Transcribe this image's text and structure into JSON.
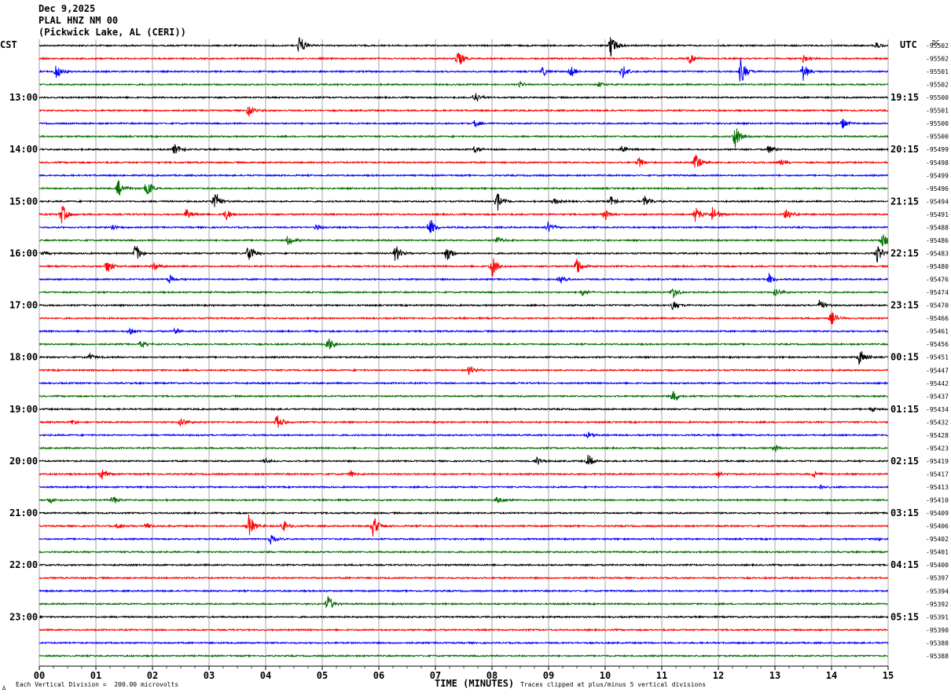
{
  "header": {
    "date": "Dec 9,2025",
    "station": "PLAL HNZ NM 00",
    "location": "(Pickwick Lake, AL (CERI))"
  },
  "left_tz": "CST",
  "right_tz": "UTC",
  "dc_label": "DC",
  "footer": {
    "scale": "Each Vertical Division =  200.00 microvolts",
    "clip": "Traces clipped at plus/minus 5 vertical divisions",
    "logo": "∆"
  },
  "colors": {
    "cycle": [
      "#000000",
      "#ff0000",
      "#0000ff",
      "#007000"
    ],
    "grid": "#808080"
  },
  "chart_data": {
    "type": "line",
    "title": "PLAL HNZ NM 00",
    "xlabel": "TIME (MINUTES)",
    "ylabel": "",
    "xlim": [
      0,
      15
    ],
    "x_ticks": [
      "00",
      "01",
      "02",
      "03",
      "04",
      "05",
      "06",
      "07",
      "08",
      "09",
      "10",
      "11",
      "12",
      "13",
      "14",
      "15"
    ],
    "left_hour_labels": [
      "13:00",
      "14:00",
      "15:00",
      "16:00",
      "17:00",
      "18:00",
      "19:00",
      "20:00",
      "21:00",
      "22:00",
      "23:00"
    ],
    "right_hour_labels": [
      "19:15",
      "20:15",
      "21:15",
      "22:15",
      "23:15",
      "00:15",
      "01:15",
      "02:15",
      "03:15",
      "04:15",
      "05:15"
    ],
    "dc_offsets": [
      "-95502",
      "-95502",
      "-95501",
      "-95502",
      "-95500",
      "-95501",
      "-95500",
      "-95500",
      "-95499",
      "-95498",
      "-95499",
      "-95496",
      "-95494",
      "-95491",
      "-95488",
      "-95486",
      "-95483",
      "-95480",
      "-95476",
      "-95474",
      "-95470",
      "-95466",
      "-95461",
      "-95456",
      "-95451",
      "-95447",
      "-95442",
      "-95437",
      "-95434",
      "-95432",
      "-95428",
      "-95423",
      "-95419",
      "-95417",
      "-95413",
      "-95410",
      "-95409",
      "-95406",
      "-95402",
      "-95401",
      "-95400",
      "-95397",
      "-95394",
      "-95392",
      "-95391",
      "-95390",
      "-95388",
      "-95388"
    ],
    "events": [
      [
        [
          4.6,
          1.1
        ],
        [
          10.1,
          1.3
        ],
        [
          14.8,
          0.4
        ]
      ],
      [
        [
          7.4,
          1.0
        ],
        [
          11.5,
          0.6
        ],
        [
          13.5,
          0.6
        ]
      ],
      [
        [
          0.3,
          0.8
        ],
        [
          8.9,
          0.5
        ],
        [
          9.4,
          0.6
        ],
        [
          10.3,
          0.8
        ],
        [
          12.4,
          1.5
        ],
        [
          13.5,
          1.0
        ]
      ],
      [
        [
          8.5,
          0.3
        ],
        [
          9.9,
          0.3
        ]
      ],
      [
        [
          7.7,
          0.6
        ]
      ],
      [
        [
          3.7,
          0.6
        ]
      ],
      [
        [
          7.7,
          0.5
        ],
        [
          14.2,
          0.6
        ]
      ],
      [
        [
          12.3,
          1.3
        ]
      ],
      [
        [
          2.4,
          0.7
        ],
        [
          7.7,
          0.4
        ],
        [
          10.3,
          0.5
        ],
        [
          12.9,
          0.6
        ]
      ],
      [
        [
          10.6,
          0.6
        ],
        [
          11.6,
          1.0
        ],
        [
          13.1,
          0.5
        ]
      ],
      [],
      [
        [
          1.4,
          1.0
        ],
        [
          1.9,
          1.0
        ]
      ],
      [
        [
          3.1,
          1.2
        ],
        [
          8.1,
          1.0
        ],
        [
          9.1,
          0.4
        ],
        [
          10.1,
          0.6
        ],
        [
          10.7,
          0.7
        ]
      ],
      [
        [
          0.4,
          1.1
        ],
        [
          2.6,
          0.6
        ],
        [
          3.3,
          0.7
        ],
        [
          10.0,
          0.6
        ],
        [
          11.6,
          1.0
        ],
        [
          11.9,
          0.9
        ],
        [
          13.2,
          0.8
        ]
      ],
      [
        [
          1.3,
          0.4
        ],
        [
          4.9,
          0.4
        ],
        [
          6.9,
          1.1
        ],
        [
          9.0,
          0.7
        ]
      ],
      [
        [
          4.4,
          0.6
        ],
        [
          8.1,
          0.5
        ],
        [
          14.9,
          0.8
        ]
      ],
      [
        [
          0.1,
          0.3
        ],
        [
          1.7,
          1.1
        ],
        [
          3.7,
          1.1
        ],
        [
          6.3,
          1.0
        ],
        [
          7.2,
          0.9
        ],
        [
          14.8,
          1.1
        ]
      ],
      [
        [
          1.2,
          0.8
        ],
        [
          2.0,
          0.7
        ],
        [
          8.0,
          1.2
        ],
        [
          9.5,
          1.0
        ]
      ],
      [
        [
          2.3,
          0.5
        ],
        [
          9.2,
          0.5
        ],
        [
          12.9,
          0.6
        ]
      ],
      [
        [
          9.6,
          0.5
        ],
        [
          11.2,
          0.7
        ],
        [
          13.0,
          0.6
        ]
      ],
      [
        [
          13.8,
          0.7
        ],
        [
          11.2,
          0.6
        ]
      ],
      [
        [
          14.0,
          0.7
        ]
      ],
      [
        [
          1.6,
          0.5
        ],
        [
          2.4,
          0.4
        ]
      ],
      [
        [
          1.8,
          0.4
        ],
        [
          5.1,
          0.9
        ]
      ],
      [
        [
          0.9,
          0.4
        ],
        [
          14.5,
          1.1
        ]
      ],
      [
        [
          7.6,
          0.6
        ]
      ],
      [],
      [
        [
          11.2,
          0.9
        ]
      ],
      [
        [
          14.7,
          0.3
        ]
      ],
      [
        [
          0.6,
          0.3
        ],
        [
          2.5,
          0.6
        ],
        [
          4.2,
          0.8
        ]
      ],
      [
        [
          9.7,
          0.4
        ]
      ],
      [
        [
          13.0,
          0.4
        ]
      ],
      [
        [
          4.0,
          0.3
        ],
        [
          8.8,
          0.5
        ],
        [
          9.7,
          0.7
        ]
      ],
      [
        [
          1.1,
          0.7
        ],
        [
          5.5,
          0.4
        ],
        [
          12.0,
          0.4
        ],
        [
          13.7,
          0.4
        ]
      ],
      [
        [
          13.8,
          0.4
        ]
      ],
      [
        [
          0.2,
          0.3
        ],
        [
          1.3,
          0.5
        ],
        [
          8.1,
          0.5
        ]
      ],
      [],
      [
        [
          3.7,
          1.3
        ],
        [
          4.3,
          0.8
        ],
        [
          5.9,
          1.2
        ],
        [
          1.4,
          0.4
        ],
        [
          1.9,
          0.4
        ]
      ],
      [
        [
          4.1,
          0.6
        ],
        [
          14.8,
          0.3
        ]
      ],
      [],
      [],
      [],
      [],
      [
        [
          5.1,
          1.0
        ]
      ],
      [],
      [],
      [],
      []
    ]
  }
}
